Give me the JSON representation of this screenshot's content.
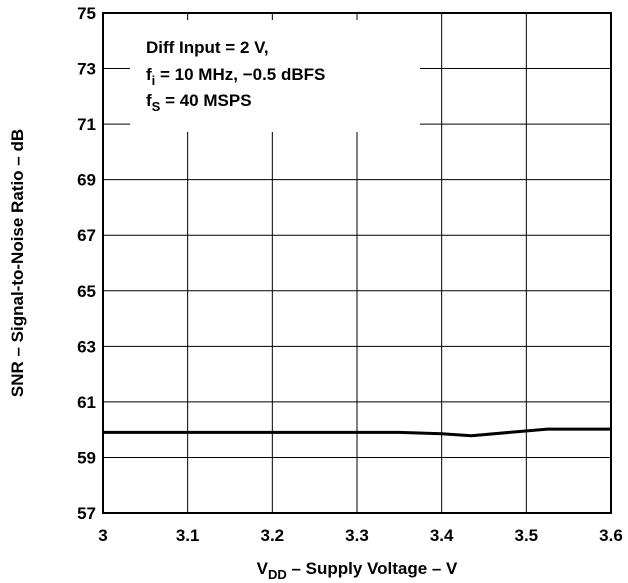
{
  "chart_data": {
    "type": "line",
    "title": "",
    "xlabel": "V_DD – Supply Voltage – V",
    "xlabel_main": "V",
    "xlabel_sub": "DD",
    "xlabel_rest": " – Supply Voltage – V",
    "ylabel": "SNR – Signal-to-Noise Ratio – dB",
    "xlim": [
      3,
      3.6
    ],
    "ylim": [
      57,
      75
    ],
    "x_ticks": [
      "3",
      "3.1",
      "3.2",
      "3.3",
      "3.4",
      "3.5",
      "3.6"
    ],
    "y_ticks": [
      "75",
      "73",
      "71",
      "69",
      "67",
      "65",
      "63",
      "61",
      "59",
      "57"
    ],
    "grid": true,
    "series": [
      {
        "x": [
          3.0,
          3.1,
          3.2,
          3.3,
          3.35,
          3.4,
          3.435,
          3.48,
          3.525,
          3.56,
          3.6
        ],
        "y": [
          59.9,
          59.9,
          59.9,
          59.9,
          59.9,
          59.85,
          59.78,
          59.9,
          60.02,
          60.02,
          60.02
        ]
      }
    ],
    "annotation": {
      "line1": "Diff Input = 2 V,",
      "line2_main": "f",
      "line2_sub": "i",
      "line2_rest": " = 10 MHz, −0.5 dBFS",
      "line3_main": "f",
      "line3_sub": "S",
      "line3_rest": " = 40 MSPS"
    }
  }
}
